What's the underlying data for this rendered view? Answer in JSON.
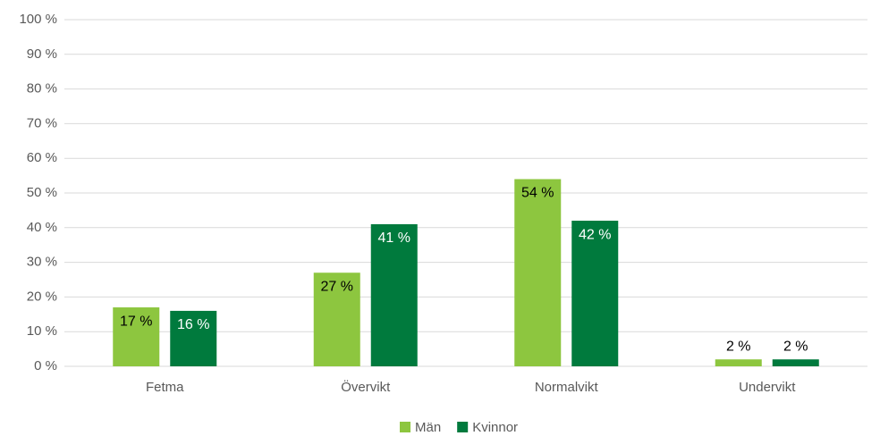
{
  "chart_data": {
    "type": "bar",
    "categories": [
      "Fetma",
      "Övervikt",
      "Normalvikt",
      "Undervikt"
    ],
    "series": [
      {
        "name": "Män",
        "color": "#8dc63f",
        "values": [
          17,
          27,
          54,
          2
        ],
        "value_labels": [
          "17 %",
          "27 %",
          "54 %",
          "2 %"
        ]
      },
      {
        "name": "Kvinnor",
        "color": "#007a3d",
        "values": [
          16,
          41,
          42,
          2
        ],
        "value_labels": [
          "16 %",
          "41 %",
          "42 %",
          "2 %"
        ]
      }
    ],
    "ylim": [
      0,
      100
    ],
    "yticks": [
      {
        "value": 0,
        "label": "0 %"
      },
      {
        "value": 10,
        "label": "10 %"
      },
      {
        "value": 20,
        "label": "20 %"
      },
      {
        "value": 30,
        "label": "30 %"
      },
      {
        "value": 40,
        "label": "40 %"
      },
      {
        "value": 50,
        "label": "50 %"
      },
      {
        "value": 60,
        "label": "60 %"
      },
      {
        "value": 70,
        "label": "70 %"
      },
      {
        "value": 80,
        "label": "80 %"
      },
      {
        "value": 90,
        "label": "90 %"
      },
      {
        "value": 100,
        "label": "100 %"
      }
    ],
    "grid": true,
    "legend": "bottom"
  }
}
